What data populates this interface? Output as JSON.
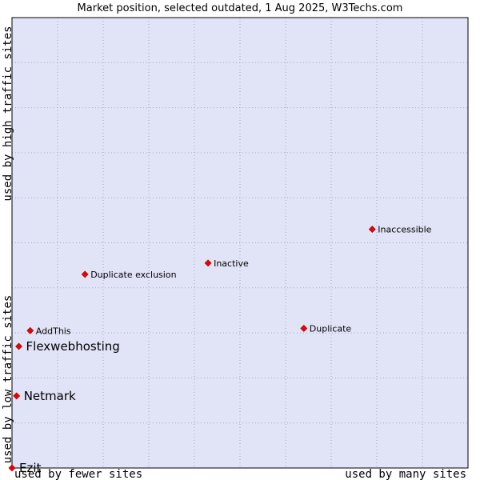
{
  "chart_data": {
    "type": "scatter",
    "title": "Market position, selected outdated, 1 Aug 2025, W3Techs.com",
    "xlabel_low": "used by fewer sites",
    "xlabel_high": "used by many sites",
    "ylabel_low": "used by low traffic sites",
    "ylabel_high": "used by high traffic sites",
    "xlim": [
      0,
      10
    ],
    "ylim": [
      0,
      10
    ],
    "grid": true,
    "points": [
      {
        "label": "Inaccessible",
        "x": 7.9,
        "y": 5.3,
        "emphasis": false
      },
      {
        "label": "Inactive",
        "x": 4.3,
        "y": 4.55,
        "emphasis": false
      },
      {
        "label": "Duplicate exclusion",
        "x": 1.6,
        "y": 4.3,
        "emphasis": false
      },
      {
        "label": "Duplicate",
        "x": 6.4,
        "y": 3.1,
        "emphasis": false
      },
      {
        "label": "AddThis",
        "x": 0.4,
        "y": 3.05,
        "emphasis": false
      },
      {
        "label": "Flexwebhosting",
        "x": 0.15,
        "y": 2.7,
        "emphasis": true
      },
      {
        "label": "Netmark",
        "x": 0.1,
        "y": 1.6,
        "emphasis": true
      },
      {
        "label": "Ezit",
        "x": 0.0,
        "y": 0.0,
        "emphasis": true
      }
    ],
    "colors": {
      "plot_bg": "#e1e3f7",
      "grid": "#a4a6c8",
      "marker": "#ee0000",
      "axis": "#000000"
    }
  }
}
